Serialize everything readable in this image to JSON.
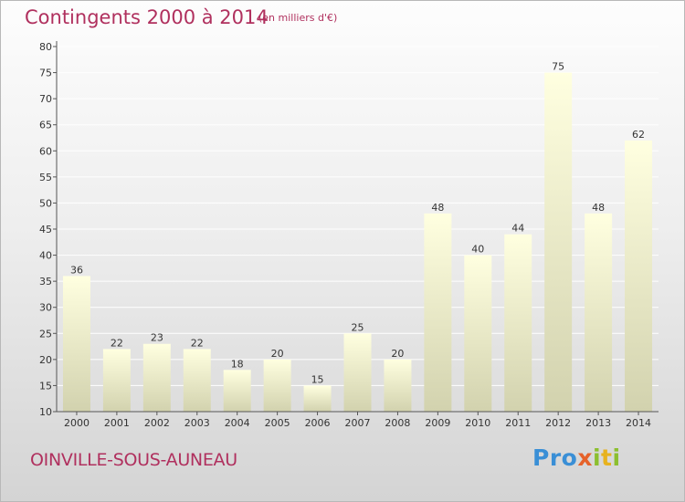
{
  "header": {
    "title": "Contingents 2000 à 2014",
    "subtitle": "(en milliers d'€)"
  },
  "footer": {
    "commune": "OINVILLE-SOUS-AUNEAU",
    "logo": {
      "p1": "Pro",
      "p2": "x",
      "p3": "i",
      "p4": "t",
      "p5": "i"
    }
  },
  "colors": {
    "title": "#b0305e",
    "bar_top": "#ffffe0",
    "bar_bottom": "#d2d2ae",
    "axis": "#555555",
    "grid": "#ffffff"
  },
  "chart_data": {
    "type": "bar",
    "title": "Contingents 2000 à 2014",
    "subtitle": "(en milliers d'€)",
    "categories": [
      "2000",
      "2001",
      "2002",
      "2003",
      "2004",
      "2005",
      "2006",
      "2007",
      "2008",
      "2009",
      "2010",
      "2011",
      "2012",
      "2013",
      "2014"
    ],
    "values": [
      36,
      22,
      23,
      22,
      18,
      20,
      15,
      25,
      20,
      48,
      40,
      44,
      75,
      48,
      62
    ],
    "ylim": [
      10,
      80
    ],
    "yticks": [
      10,
      15,
      20,
      25,
      30,
      35,
      40,
      45,
      50,
      55,
      60,
      65,
      70,
      75,
      80
    ],
    "grid": true,
    "data_labels": true
  }
}
